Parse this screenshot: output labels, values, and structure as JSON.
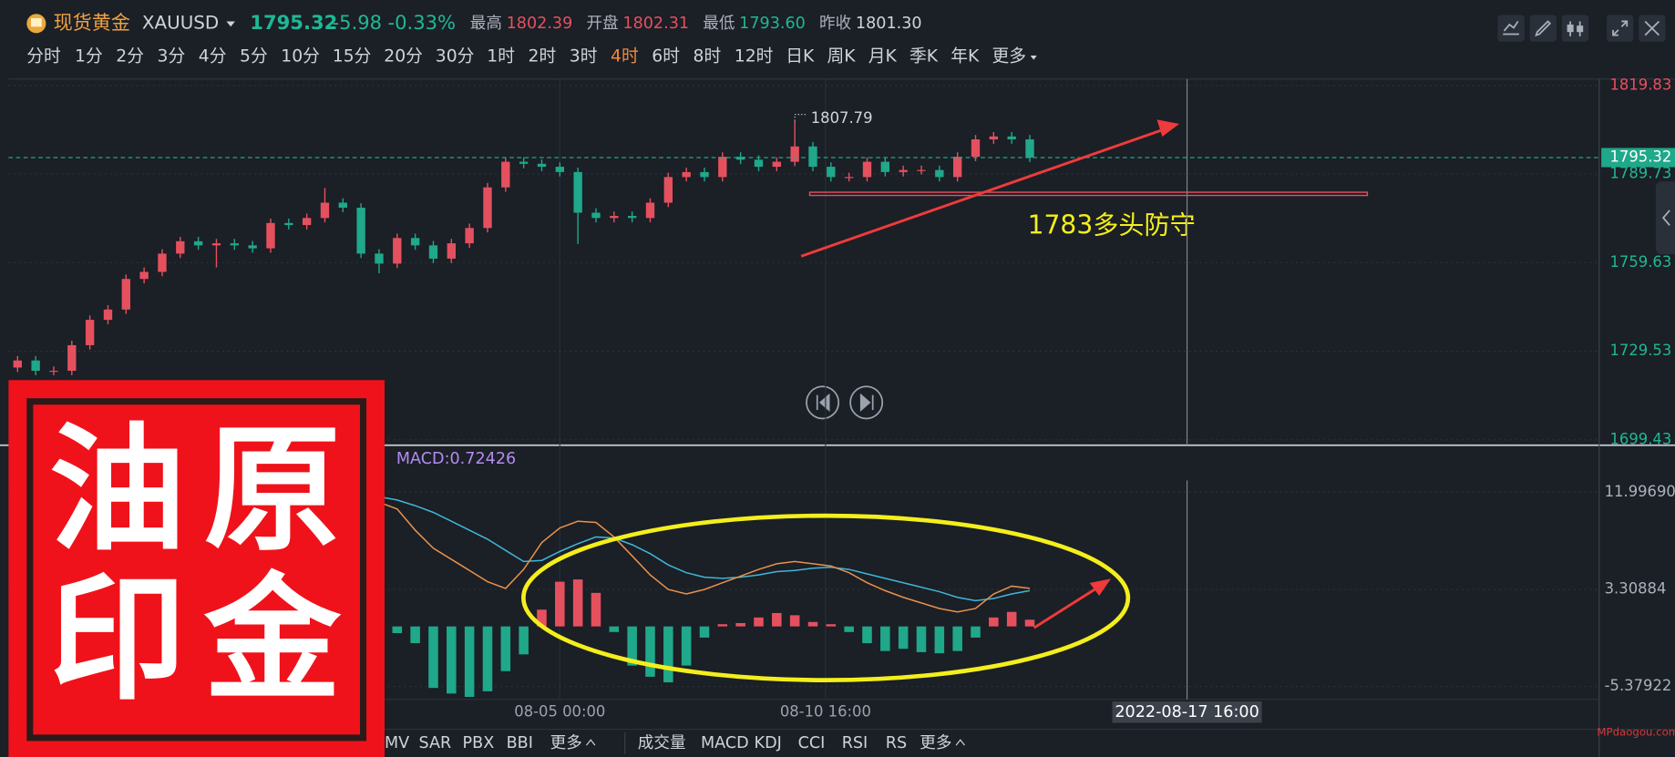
{
  "header": {
    "name": "现货黄金",
    "symbol": "XAUUSD",
    "price": "1795.32",
    "change": "-5.98",
    "change_pct": "-0.33%",
    "stats": [
      {
        "label": "最高",
        "value": "1802.39"
      },
      {
        "label": "开盘",
        "value": "1802.31"
      },
      {
        "label": "最低",
        "value": "1793.60"
      },
      {
        "label": "昨收",
        "value": "1801.30"
      }
    ]
  },
  "periods": [
    "分时",
    "1分",
    "2分",
    "3分",
    "4分",
    "5分",
    "10分",
    "15分",
    "20分",
    "30分",
    "1时",
    "2时",
    "3时",
    "4时",
    "6时",
    "8时",
    "12时",
    "日K",
    "周K",
    "月K",
    "季K",
    "年K",
    "更多"
  ],
  "active_period": 13,
  "chart_data": [
    {
      "type": "candlestick",
      "open": [
        1724.0,
        1726.4,
        1722.9,
        1722.9,
        1731.6,
        1740.2,
        1743.7,
        1754.1,
        1756.5,
        1762.7,
        1766.9,
        1765.5,
        1766.2,
        1765.5,
        1764.5,
        1773.1,
        1772.4,
        1774.8,
        1780.0,
        1778.3,
        1762.7,
        1759.3,
        1768.0,
        1765.5,
        1761.0,
        1766.2,
        1771.4,
        1785.2,
        1793.9,
        1793.2,
        1792.2,
        1790.4,
        1776.6,
        1774.8,
        1775.5,
        1774.8,
        1780.0,
        1788.7,
        1790.4,
        1788.7,
        1795.6,
        1794.6,
        1792.2,
        1793.9,
        1799.1,
        1792.2,
        1788.7,
        1788.7,
        1793.9,
        1790.4,
        1791.1,
        1791.1,
        1788.7,
        1795.6,
        1801.5,
        1802.5,
        1801.5
      ],
      "high": [
        1727.9,
        1727.9,
        1724.4,
        1733.1,
        1741.7,
        1745.2,
        1755.6,
        1758.0,
        1764.2,
        1768.4,
        1768.4,
        1767.7,
        1767.7,
        1767.0,
        1774.6,
        1774.6,
        1776.3,
        1785.0,
        1781.5,
        1779.8,
        1764.2,
        1769.5,
        1769.5,
        1767.0,
        1767.7,
        1772.9,
        1786.7,
        1795.4,
        1795.4,
        1794.7,
        1793.7,
        1791.9,
        1778.1,
        1777.0,
        1777.0,
        1781.5,
        1790.2,
        1791.9,
        1791.9,
        1797.1,
        1797.1,
        1796.1,
        1795.4,
        1807.79,
        1800.6,
        1793.7,
        1790.2,
        1795.4,
        1795.4,
        1792.6,
        1792.6,
        1792.6,
        1797.1,
        1803.0,
        1804.0,
        1804.0,
        1803.0
      ],
      "low": [
        1722.5,
        1721.4,
        1721.4,
        1721.4,
        1730.1,
        1738.7,
        1742.2,
        1752.6,
        1755.0,
        1761.2,
        1764.0,
        1758.0,
        1764.0,
        1763.0,
        1763.0,
        1770.9,
        1770.9,
        1773.3,
        1776.8,
        1761.2,
        1756.0,
        1757.8,
        1764.0,
        1759.5,
        1759.5,
        1764.7,
        1769.9,
        1783.7,
        1791.7,
        1790.7,
        1788.9,
        1766.0,
        1773.3,
        1773.3,
        1773.3,
        1773.3,
        1778.5,
        1787.2,
        1787.2,
        1787.2,
        1793.1,
        1790.7,
        1790.7,
        1792.4,
        1790.7,
        1787.2,
        1787.2,
        1787.2,
        1788.9,
        1788.9,
        1789.6,
        1787.2,
        1787.2,
        1794.1,
        1800.0,
        1800.0,
        1793.8
      ],
      "close": [
        1726.4,
        1722.9,
        1722.9,
        1731.6,
        1740.2,
        1743.7,
        1754.1,
        1756.5,
        1762.7,
        1766.9,
        1765.5,
        1766.2,
        1765.5,
        1764.5,
        1773.1,
        1772.4,
        1774.8,
        1780.0,
        1778.3,
        1762.7,
        1759.3,
        1768.0,
        1765.5,
        1761.0,
        1766.2,
        1771.4,
        1785.2,
        1793.9,
        1793.2,
        1792.2,
        1790.4,
        1776.6,
        1774.8,
        1775.5,
        1774.8,
        1780.0,
        1788.7,
        1790.4,
        1788.7,
        1795.6,
        1794.6,
        1792.2,
        1793.9,
        1799.1,
        1792.2,
        1788.7,
        1788.7,
        1793.9,
        1790.4,
        1791.1,
        1791.1,
        1788.7,
        1795.6,
        1801.5,
        1802.5,
        1801.5,
        1795.3
      ],
      "up_color": "#e5505f",
      "down_color": "#1fa88a",
      "xlim": [
        -0.5,
        87.5
      ],
      "ylim": [
        1699.43,
        1819.83
      ],
      "yticks": [
        1819.83,
        1789.73,
        1759.63,
        1729.53,
        1699.43
      ],
      "xticks": [
        {
          "value": 30,
          "label": "08-05 00:00"
        },
        {
          "value": 44.7,
          "label": "08-10 16:00"
        }
      ],
      "crosshair": {
        "value": 64.7,
        "label": "2022-08-17 16:00"
      },
      "last_price": 1795.32,
      "high_marker": 43,
      "support": {
        "value": 1783,
        "label": "1783多头防守"
      },
      "grid": true
    },
    {
      "type": "macd",
      "legend": "MACD:0.72426",
      "histogram": [
        -0.6,
        -0.4,
        0.3,
        1.2,
        2.0,
        2.4,
        2.8,
        2.6,
        2.4,
        2.0,
        1.6,
        1.2,
        0.9,
        0.6,
        0.4,
        0.3,
        0.2,
        0.1,
        0.1,
        -0.4,
        -0.5,
        -0.6,
        -1.5,
        -5.5,
        -6.0,
        -6.3,
        -5.8,
        -4.0,
        -2.5,
        1.5,
        4.0,
        4.2,
        3.0,
        -0.5,
        -3.5,
        -4.5,
        -5.0,
        -3.5,
        -1.0,
        0.2,
        0.3,
        0.8,
        1.2,
        1.0,
        0.4,
        0.2,
        -0.5,
        -1.5,
        -2.2,
        -2.0,
        -2.3,
        -2.4,
        -2.2,
        -1.0,
        0.8,
        1.3,
        0.6
      ],
      "dif": [
        2.0,
        2.5,
        3.2,
        4.2,
        5.3,
        6.3,
        7.3,
        8.1,
        8.9,
        9.6,
        10.1,
        10.5,
        10.8,
        11.0,
        11.2,
        11.4,
        11.5,
        11.5,
        11.6,
        11.3,
        11.1,
        10.5,
        8.6,
        7.0,
        6.0,
        5.0,
        4.0,
        3.4,
        5.1,
        7.5,
        8.8,
        9.4,
        9.3,
        8.0,
        6.3,
        4.6,
        3.3,
        2.9,
        3.3,
        3.9,
        4.5,
        5.1,
        5.6,
        5.8,
        5.6,
        5.4,
        4.8,
        3.9,
        3.2,
        2.6,
        2.1,
        1.6,
        1.3,
        1.6,
        2.9,
        3.6,
        3.4
      ],
      "dea": [
        1.8,
        2.0,
        2.4,
        2.9,
        3.5,
        4.2,
        5.0,
        5.8,
        6.5,
        7.2,
        7.9,
        8.5,
        9.1,
        9.6,
        10.0,
        10.4,
        10.8,
        11.1,
        11.3,
        11.5,
        11.6,
        11.3,
        10.8,
        10.2,
        9.4,
        8.6,
        7.8,
        6.8,
        5.8,
        5.9,
        6.7,
        7.4,
        8.0,
        7.9,
        7.3,
        6.5,
        5.5,
        4.8,
        4.4,
        4.3,
        4.4,
        4.6,
        4.9,
        5.0,
        5.2,
        5.3,
        5.1,
        4.7,
        4.3,
        3.9,
        3.5,
        3.1,
        2.6,
        2.3,
        2.5,
        2.9,
        3.2
      ],
      "dif_color": "#e8914a",
      "dea_color": "#3fb6d8",
      "up_color": "#e5505f",
      "down_color": "#1fa88a",
      "xlim": [
        -0.5,
        87.5
      ],
      "ylim": [
        -6.52,
        13.05
      ],
      "yticks": [
        {
          "value": 11.9969,
          "label": "11.99690"
        },
        3.30884,
        -5.37922
      ]
    }
  ],
  "tabs_left": [
    "MV",
    "SAR",
    "PBX",
    "BBI",
    "更多"
  ],
  "tabs_right": [
    "成交量",
    "MACD",
    "KDJ",
    "CCI",
    "RSI",
    "RS",
    "更多"
  ],
  "watermark": {
    "rows": [
      [
        "油",
        "原"
      ],
      [
        "印",
        "金"
      ]
    ]
  },
  "site": "MPdaogou.com"
}
